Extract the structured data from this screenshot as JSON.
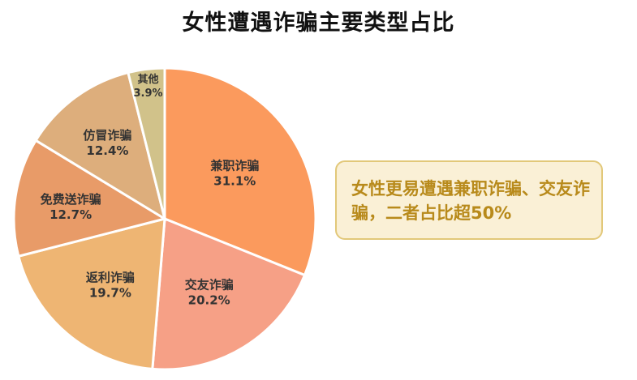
{
  "chart_data": {
    "type": "pie",
    "title": "女性遭遇诈骗主要类型占比",
    "categories": [
      "兼职诈骗",
      "交友诈骗",
      "返利诈骗",
      "免费送诈骗",
      "仿冒诈骗",
      "其他"
    ],
    "values": [
      31.1,
      20.2,
      19.7,
      12.7,
      12.4,
      3.9
    ],
    "value_labels": [
      "31.1%",
      "20.2%",
      "19.7%",
      "12.7%",
      "12.4%",
      "3.9%"
    ],
    "colors": [
      "#fb9a5d",
      "#f6a086",
      "#eeb573",
      "#e89b68",
      "#ddae7c",
      "#d1c28a"
    ],
    "start_angle": "12-o'clock",
    "direction": "clockwise",
    "legend": "none"
  },
  "annotation": {
    "text": "女性更易遭遇兼职诈骗、交友诈骗，二者占比超50%"
  }
}
